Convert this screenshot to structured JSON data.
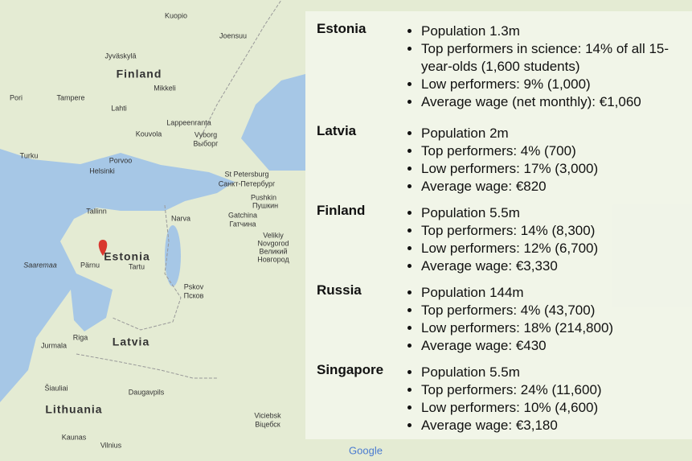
{
  "map": {
    "labels": [
      "Kuopio",
      "Joensuu",
      "Jyväskylä",
      "Finland",
      "Mikkeli",
      "Pori",
      "Tampere",
      "Lahti",
      "Lappeenranta",
      "Kouvola",
      "Vyborg",
      "Выборг",
      "Turku",
      "Porvoo",
      "Helsinki",
      "St Petersburg",
      "Санкт-Петербург",
      "Pushkin",
      "Пушкин",
      "Tallinn",
      "Gatchina",
      "Гатчина",
      "Narva",
      "Velikiy",
      "Novgorod",
      "Великий",
      "Новгород",
      "Estonia",
      "Saaremaa",
      "Pärnu",
      "Tartu",
      "Pskov",
      "Псков",
      "Riga",
      "Jurmala",
      "Latvia",
      "Šiauliai",
      "Daugavpils",
      "Lithuania",
      "Viciebsk",
      "Віцебск",
      "Kaunas",
      "Vilnius",
      "Google"
    ]
  },
  "panel": {
    "countries": [
      {
        "name": "Estonia",
        "items": [
          "Population 1.3m",
          "Top performers in science: 14% of all 15-year-olds (1,600 students)",
          "Low performers: 9% (1,000)",
          "Average wage (net monthly): €1,060"
        ]
      },
      {
        "name": "Latvia",
        "items": [
          "Population 2m",
          "Top performers: 4% (700)",
          "Low performers: 17% (3,000)",
          "Average wage: €820"
        ]
      },
      {
        "name": "Finland",
        "items": [
          "Population 5.5m",
          "Top performers: 14% (8,300)",
          "Low performers: 12% (6,700)",
          "Average wage: €3,330"
        ]
      },
      {
        "name": "Russia",
        "items": [
          "Population 144m",
          "Top performers: 4% (43,700)",
          "Low performers: 18% (214,800)",
          "Average wage: €430"
        ]
      },
      {
        "name": "Singapore",
        "items": [
          "Population 5.5m",
          "Top performers: 24% (11,600)",
          "Low performers: 10% (4,600)",
          "Average wage: €3,180"
        ]
      }
    ]
  }
}
